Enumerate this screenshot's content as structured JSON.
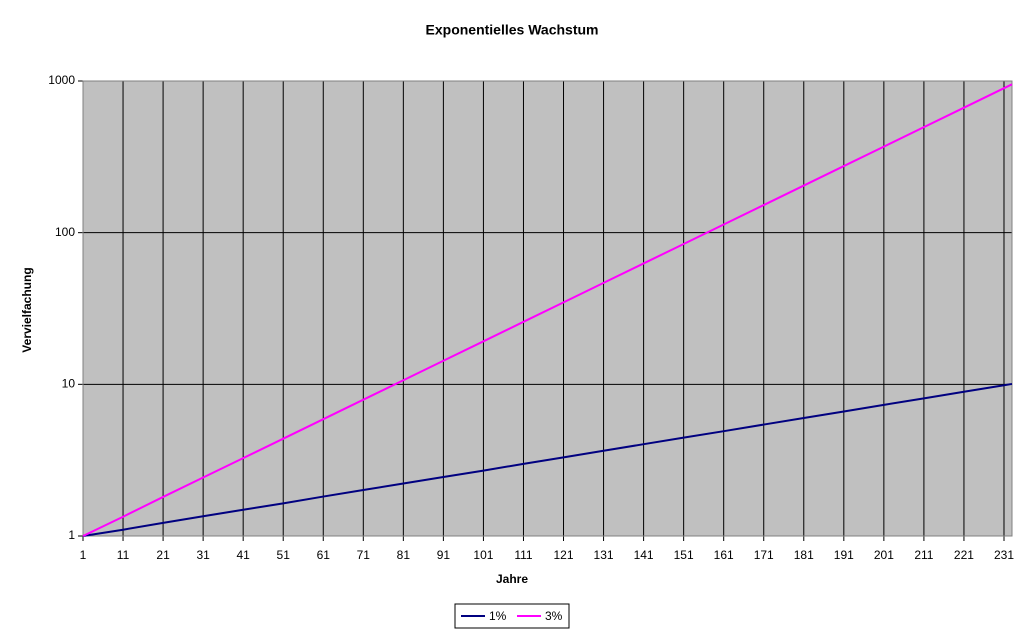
{
  "chart_data": {
    "type": "line",
    "title": "Exponentielles Wachstum",
    "x_label": "Jahre",
    "y_label": "Vervielfachung",
    "x": [
      1,
      11,
      21,
      31,
      41,
      51,
      61,
      71,
      81,
      91,
      101,
      111,
      121,
      131,
      141,
      151,
      161,
      171,
      181,
      191,
      201,
      211,
      221,
      231,
      233
    ],
    "xlim": [
      1,
      233
    ],
    "xticks": [
      1,
      11,
      21,
      31,
      41,
      51,
      61,
      71,
      81,
      91,
      101,
      111,
      121,
      131,
      141,
      151,
      161,
      171,
      181,
      191,
      201,
      211,
      221,
      231
    ],
    "ylim": [
      1,
      1000
    ],
    "yticks": [
      1,
      10,
      100,
      1000
    ],
    "log_y": true,
    "grid": true,
    "legend": "bottom",
    "plot_background": "#c0c0c0",
    "series": [
      {
        "name": "1%",
        "color": "#000080",
        "values": [
          1,
          1.1,
          1.22,
          1.35,
          1.49,
          1.64,
          1.82,
          2.01,
          2.22,
          2.45,
          2.7,
          2.99,
          3.3,
          3.65,
          4.03,
          4.45,
          4.91,
          5.43,
          6.0,
          6.62,
          7.32,
          8.08,
          8.93,
          9.86,
          10.06
        ]
      },
      {
        "name": "3%",
        "color": "#ff00ff",
        "values": [
          1,
          1.34,
          1.81,
          2.43,
          3.26,
          4.38,
          5.89,
          7.92,
          10.64,
          14.3,
          19.22,
          25.83,
          34.71,
          46.64,
          62.68,
          84.24,
          113.2,
          152.1,
          204.5,
          274.8,
          369.4,
          496.4,
          667.1,
          896.5,
          951.1
        ]
      }
    ]
  }
}
